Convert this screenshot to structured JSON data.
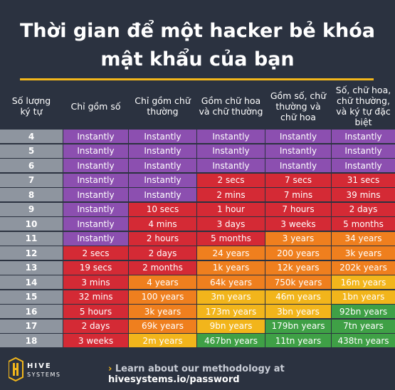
{
  "title_line1": "Thời gian để một hacker bẻ khóa",
  "title_line2": "mật khẩu của bạn",
  "headers": [
    "Số lượng\nký tự",
    "Chỉ gồm số",
    "Chỉ gồm chữ\nthường",
    "Gồm chữ hoa\nvà chữ thường",
    "Gồm số, chữ\nthường và\nchữ hoa",
    "Số, chữ hoa,\nchữ thường,\nvà ký tự đặc\nbiệt"
  ],
  "rows": [
    {
      "n": "4",
      "cells": [
        "Instantly",
        "Instantly",
        "Instantly",
        "Instantly",
        "Instantly"
      ]
    },
    {
      "n": "5",
      "cells": [
        "Instantly",
        "Instantly",
        "Instantly",
        "Instantly",
        "Instantly"
      ]
    },
    {
      "n": "6",
      "cells": [
        "Instantly",
        "Instantly",
        "Instantly",
        "Instantly",
        "Instantly"
      ]
    },
    {
      "n": "7",
      "cells": [
        "Instantly",
        "Instantly",
        "2 secs",
        "7 secs",
        "31 secs"
      ]
    },
    {
      "n": "8",
      "cells": [
        "Instantly",
        "Instantly",
        "2 mins",
        "7 mins",
        "39 mins"
      ]
    },
    {
      "n": "9",
      "cells": [
        "Instantly",
        "10 secs",
        "1 hour",
        "7 hours",
        "2 days"
      ]
    },
    {
      "n": "10",
      "cells": [
        "Instantly",
        "4 mins",
        "3 days",
        "3 weeks",
        "5 months"
      ]
    },
    {
      "n": "11",
      "cells": [
        "Instantly",
        "2 hours",
        "5 months",
        "3 years",
        "34 years"
      ]
    },
    {
      "n": "12",
      "cells": [
        "2 secs",
        "2 days",
        "24 years",
        "200 years",
        "3k years"
      ]
    },
    {
      "n": "13",
      "cells": [
        "19 secs",
        "2 months",
        "1k years",
        "12k years",
        "202k years"
      ]
    },
    {
      "n": "14",
      "cells": [
        "3 mins",
        "4 years",
        "64k years",
        "750k years",
        "16m years"
      ]
    },
    {
      "n": "15",
      "cells": [
        "32 mins",
        "100 years",
        "3m years",
        "46m years",
        "1bn years"
      ]
    },
    {
      "n": "16",
      "cells": [
        "5 hours",
        "3k years",
        "173m years",
        "3bn years",
        "92bn years"
      ]
    },
    {
      "n": "17",
      "cells": [
        "2 days",
        "69k years",
        "9bn years",
        "179bn years",
        "7tn years"
      ]
    },
    {
      "n": "18",
      "cells": [
        "3 weeks",
        "2m years",
        "467bn years",
        "11tn years",
        "438tn years"
      ]
    }
  ],
  "colors": {
    "purple": "#8c4fb0",
    "red": "#d42a35",
    "orange": "#ef7f1e",
    "yellow": "#f2b51b",
    "green": "#3fa046",
    "numcol": "#8e959f",
    "accent": "#f3b71b"
  },
  "footer": {
    "logo_text_1": "HIVE",
    "logo_text_2": "SYSTEMS",
    "link_prefix": "Learn about our methodology at",
    "link_url": "hivesystems.io/password"
  }
}
